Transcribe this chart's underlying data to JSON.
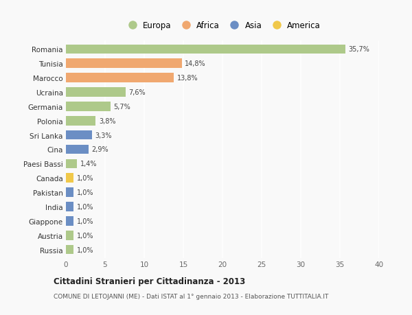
{
  "categories": [
    "Romania",
    "Tunisia",
    "Marocco",
    "Ucraina",
    "Germania",
    "Polonia",
    "Sri Lanka",
    "Cina",
    "Paesi Bassi",
    "Canada",
    "Pakistan",
    "India",
    "Giappone",
    "Austria",
    "Russia"
  ],
  "values": [
    35.7,
    14.8,
    13.8,
    7.6,
    5.7,
    3.8,
    3.3,
    2.9,
    1.4,
    1.0,
    1.0,
    1.0,
    1.0,
    1.0,
    1.0
  ],
  "labels": [
    "35,7%",
    "14,8%",
    "13,8%",
    "7,6%",
    "5,7%",
    "3,8%",
    "3,3%",
    "2,9%",
    "1,4%",
    "1,0%",
    "1,0%",
    "1,0%",
    "1,0%",
    "1,0%",
    "1,0%"
  ],
  "continents": [
    "Europa",
    "Africa",
    "Africa",
    "Europa",
    "Europa",
    "Europa",
    "Asia",
    "Asia",
    "Europa",
    "America",
    "Asia",
    "Asia",
    "Asia",
    "Europa",
    "Europa"
  ],
  "colors": {
    "Europa": "#aec98a",
    "Africa": "#f0a870",
    "Asia": "#6b8ec4",
    "America": "#f0c84a"
  },
  "xlim": [
    0,
    40
  ],
  "xticks": [
    0,
    5,
    10,
    15,
    20,
    25,
    30,
    35,
    40
  ],
  "title": "Cittadini Stranieri per Cittadinanza - 2013",
  "subtitle": "COMUNE DI LETOJANNI (ME) - Dati ISTAT al 1° gennaio 2013 - Elaborazione TUTTITALIA.IT",
  "background_color": "#f9f9f9",
  "grid_color": "#ffffff",
  "bar_height": 0.65,
  "legend_order": [
    "Europa",
    "Africa",
    "Asia",
    "America"
  ]
}
